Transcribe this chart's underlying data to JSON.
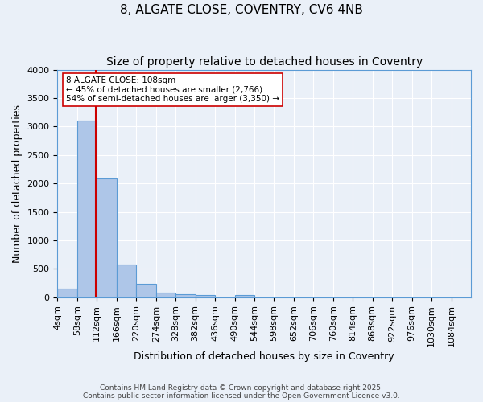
{
  "title1": "8, ALGATE CLOSE, COVENTRY, CV6 4NB",
  "title2": "Size of property relative to detached houses in Coventry",
  "xlabel": "Distribution of detached houses by size in Coventry",
  "ylabel": "Number of detached properties",
  "bin_labels": [
    "4sqm",
    "58sqm",
    "112sqm",
    "166sqm",
    "220sqm",
    "274sqm",
    "328sqm",
    "382sqm",
    "436sqm",
    "490sqm",
    "544sqm",
    "598sqm",
    "652sqm",
    "706sqm",
    "760sqm",
    "814sqm",
    "868sqm",
    "922sqm",
    "976sqm",
    "1030sqm",
    "1084sqm"
  ],
  "bin_edges": [
    4,
    58,
    112,
    166,
    220,
    274,
    328,
    382,
    436,
    490,
    544,
    598,
    652,
    706,
    760,
    814,
    868,
    922,
    976,
    1030,
    1084
  ],
  "bar_heights": [
    150,
    3100,
    2090,
    580,
    230,
    80,
    50,
    40,
    0,
    35,
    0,
    0,
    0,
    0,
    0,
    0,
    0,
    0,
    0,
    0
  ],
  "bar_color": "#aec6e8",
  "bar_edge_color": "#5b9bd5",
  "property_size": 108,
  "red_line_color": "#cc0000",
  "annotation_text": "8 ALGATE CLOSE: 108sqm\n← 45% of detached houses are smaller (2,766)\n54% of semi-detached houses are larger (3,350) →",
  "annotation_box_color": "#ffffff",
  "annotation_box_edge_color": "#cc0000",
  "ylim": [
    0,
    4000
  ],
  "yticks": [
    0,
    500,
    1000,
    1500,
    2000,
    2500,
    3000,
    3500,
    4000
  ],
  "footer1": "Contains HM Land Registry data © Crown copyright and database right 2025.",
  "footer2": "Contains public sector information licensed under the Open Government Licence v3.0.",
  "bg_color": "#eaf0f8",
  "grid_color": "#ffffff",
  "title_fontsize": 11,
  "subtitle_fontsize": 10,
  "axis_label_fontsize": 9,
  "tick_fontsize": 8
}
